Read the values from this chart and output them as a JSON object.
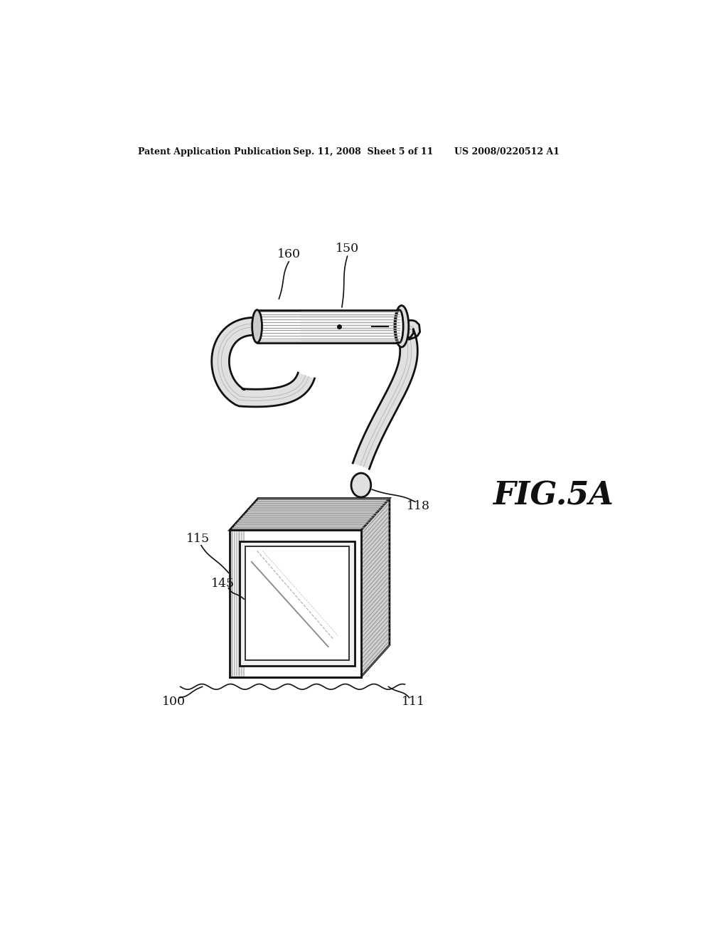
{
  "background_color": "#ffffff",
  "header_left": "Patent Application Publication",
  "header_mid": "Sep. 11, 2008  Sheet 5 of 11",
  "header_right": "US 2008/0220512 A1",
  "fig_label": "FIG.5A",
  "line_color": "#111111",
  "gray_light": "#e8e8e8",
  "gray_mid": "#bbbbbb",
  "gray_dark": "#777777"
}
